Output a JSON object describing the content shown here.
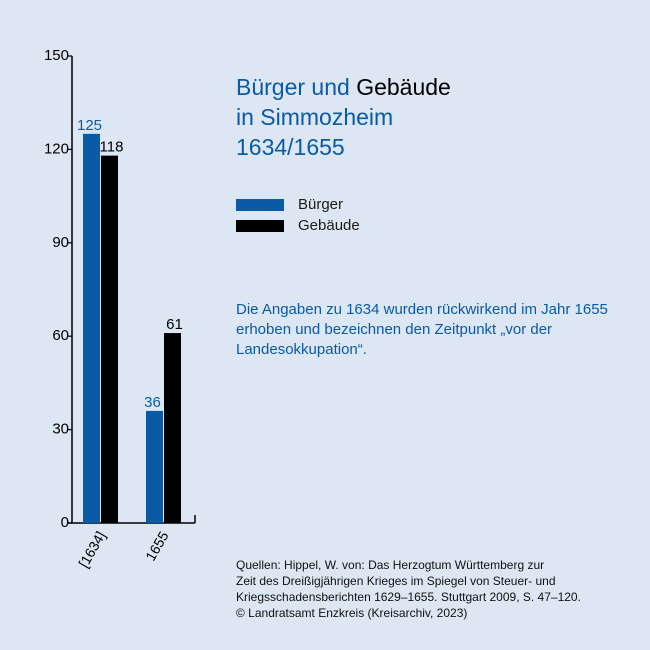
{
  "title": {
    "part1": "Bürger und ",
    "part2": "Gebäude",
    "line2": "in Simmozheim",
    "line3": "1634/1655"
  },
  "colors": {
    "buerger": "#0a5aa5",
    "gebaeude": "#000000",
    "background": "#dce7f3"
  },
  "legend": [
    {
      "label": "Bürger",
      "color": "#0a5aa5"
    },
    {
      "label": "Gebäude",
      "color": "#000000"
    }
  ],
  "note": "Die Angaben zu 1634 wurden rückwirkend im Jahr 1655 erhoben und bezeichnen den Zeitpunkt „vor der Landesokkupation“.",
  "sources": [
    "Quellen: Hippel, W. von: Das Herzogtum Württemberg zur",
    "Zeit des Dreißigjährigen Krieges im Spiegel von Steuer- und",
    "Kriegsschadensberichten 1629–1655. Stuttgart 2009, S. 47–120.",
    "© Landratsamt Enzkreis (Kreisarchiv, 2023)"
  ],
  "chart_data": {
    "type": "bar",
    "categories": [
      "[1634]",
      "1655"
    ],
    "series": [
      {
        "name": "Bürger",
        "values": [
          125,
          36
        ],
        "color": "#0a5aa5"
      },
      {
        "name": "Gebäude",
        "values": [
          118,
          61
        ],
        "color": "#000000"
      }
    ],
    "ylim": [
      0,
      150
    ],
    "yticks": [
      "0",
      "30",
      "60",
      "90",
      "120",
      "150"
    ],
    "xlabel": "",
    "ylabel": "",
    "grid": false,
    "legend_position": "right"
  }
}
